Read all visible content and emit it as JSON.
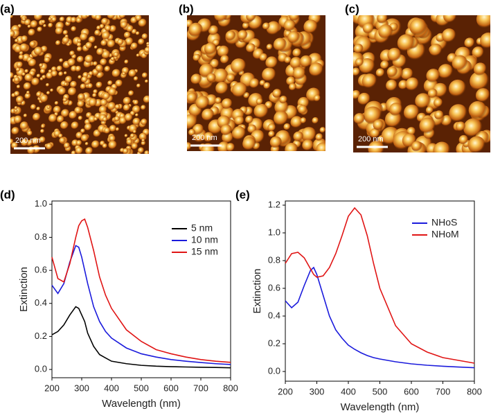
{
  "panels": [
    {
      "label": "(a)",
      "scale_bar": "200 nm"
    },
    {
      "label": "(b)",
      "scale_bar": "200 nm"
    },
    {
      "label": "(c)",
      "scale_bar": "200 nm"
    }
  ],
  "chart_data": [
    {
      "type": "line",
      "panel": "(d)",
      "x_label": "Wavelength (nm)",
      "y_label": "Extinction",
      "x": [
        200,
        220,
        240,
        260,
        280,
        290,
        300,
        310,
        320,
        340,
        360,
        380,
        400,
        450,
        500,
        550,
        600,
        650,
        700,
        750,
        800
      ],
      "series": [
        {
          "name": "5 nm",
          "color": "#000000",
          "values": [
            0.21,
            0.23,
            0.27,
            0.33,
            0.38,
            0.37,
            0.33,
            0.29,
            0.22,
            0.14,
            0.09,
            0.07,
            0.05,
            0.035,
            0.025,
            0.02,
            0.017,
            0.015,
            0.013,
            0.012,
            0.01
          ]
        },
        {
          "name": "10 nm",
          "color": "#1a1adc",
          "values": [
            0.51,
            0.46,
            0.52,
            0.65,
            0.75,
            0.74,
            0.68,
            0.6,
            0.52,
            0.38,
            0.29,
            0.23,
            0.19,
            0.13,
            0.095,
            0.075,
            0.06,
            0.05,
            0.042,
            0.035,
            0.03
          ]
        },
        {
          "name": "15 nm",
          "color": "#e01414",
          "values": [
            0.68,
            0.55,
            0.53,
            0.64,
            0.8,
            0.87,
            0.9,
            0.91,
            0.86,
            0.72,
            0.56,
            0.45,
            0.37,
            0.24,
            0.17,
            0.12,
            0.095,
            0.075,
            0.06,
            0.05,
            0.043
          ]
        }
      ],
      "xlim": [
        200,
        800
      ],
      "xticks": [
        200,
        300,
        400,
        500,
        600,
        700,
        800
      ],
      "ylim": [
        -0.05,
        1.02
      ],
      "yticks": [
        {
          "value": 0,
          "label": "0.0"
        },
        0.2,
        0.4,
        0.6,
        0.8,
        {
          "value": 1,
          "label": "1.0"
        }
      ],
      "legend": "upper-right"
    },
    {
      "type": "line",
      "panel": "(e)",
      "x_label": "Wavelength (nm)",
      "y_label": "Extinction",
      "x": [
        200,
        220,
        240,
        260,
        280,
        290,
        300,
        320,
        340,
        360,
        380,
        400,
        420,
        440,
        460,
        480,
        500,
        550,
        600,
        650,
        700,
        750,
        800
      ],
      "series": [
        {
          "name": "NHoS",
          "color": "#1a1adc",
          "values": [
            0.51,
            0.46,
            0.5,
            0.62,
            0.73,
            0.75,
            0.7,
            0.55,
            0.4,
            0.3,
            0.24,
            0.19,
            0.16,
            0.135,
            0.115,
            0.1,
            0.09,
            0.07,
            0.055,
            0.045,
            0.038,
            0.032,
            0.027
          ]
        },
        {
          "name": "NHoM",
          "color": "#e01414",
          "values": [
            0.78,
            0.85,
            0.86,
            0.82,
            0.74,
            0.7,
            0.68,
            0.69,
            0.75,
            0.85,
            0.98,
            1.12,
            1.18,
            1.13,
            0.98,
            0.78,
            0.6,
            0.33,
            0.2,
            0.14,
            0.1,
            0.08,
            0.06
          ]
        }
      ],
      "xlim": [
        200,
        800
      ],
      "xticks": [
        200,
        300,
        400,
        500,
        600,
        700,
        800
      ],
      "ylim": [
        -0.07,
        1.23
      ],
      "yticks": [
        {
          "value": 0,
          "label": "0.0"
        },
        0.2,
        0.4,
        0.6,
        0.8,
        {
          "value": 1,
          "label": "1.0"
        },
        1.2
      ],
      "legend": "upper-right"
    }
  ]
}
